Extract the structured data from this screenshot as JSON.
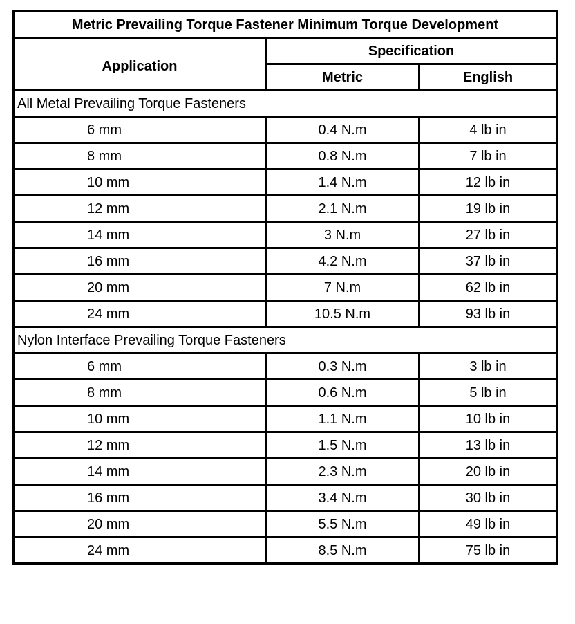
{
  "title": "Metric Prevailing Torque Fastener Minimum Torque Development",
  "headers": {
    "application": "Application",
    "specification": "Specification",
    "metric": "Metric",
    "english": "English"
  },
  "sections": [
    {
      "label": "All Metal Prevailing Torque Fasteners",
      "rows": [
        {
          "application": "6 mm",
          "metric": "0.4 N.m",
          "english": "4 lb in"
        },
        {
          "application": "8 mm",
          "metric": "0.8 N.m",
          "english": "7 lb in"
        },
        {
          "application": "10 mm",
          "metric": "1.4 N.m",
          "english": "12 lb in"
        },
        {
          "application": "12 mm",
          "metric": "2.1 N.m",
          "english": "19 lb in"
        },
        {
          "application": "14 mm",
          "metric": "3 N.m",
          "english": "27 lb in"
        },
        {
          "application": "16 mm",
          "metric": "4.2 N.m",
          "english": "37 lb in"
        },
        {
          "application": "20 mm",
          "metric": "7 N.m",
          "english": "62 lb in"
        },
        {
          "application": "24 mm",
          "metric": "10.5 N.m",
          "english": "93 lb in"
        }
      ]
    },
    {
      "label": "Nylon Interface Prevailing Torque Fasteners",
      "rows": [
        {
          "application": "6 mm",
          "metric": "0.3 N.m",
          "english": "3 lb in"
        },
        {
          "application": "8 mm",
          "metric": "0.6 N.m",
          "english": "5 lb in"
        },
        {
          "application": "10 mm",
          "metric": "1.1 N.m",
          "english": "10 lb in"
        },
        {
          "application": "12 mm",
          "metric": "1.5 N.m",
          "english": "13 lb in"
        },
        {
          "application": "14 mm",
          "metric": "2.3 N.m",
          "english": "20 lb in"
        },
        {
          "application": "16 mm",
          "metric": "3.4 N.m",
          "english": "30 lb in"
        },
        {
          "application": "20 mm",
          "metric": "5.5 N.m",
          "english": "49 lb in"
        },
        {
          "application": "24 mm",
          "metric": "8.5 N.m",
          "english": "75 lb in"
        }
      ]
    }
  ]
}
